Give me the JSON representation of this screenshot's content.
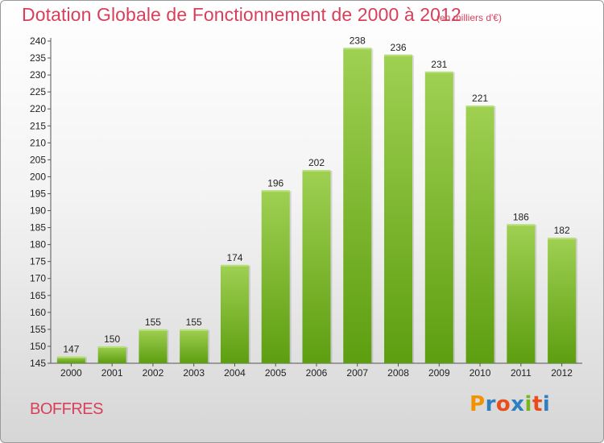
{
  "header": {
    "title": "Dotation Globale de Fonctionnement de 2000 à 2012",
    "subtitle": "(en milliers d'€)"
  },
  "commune": "BOFFRES",
  "logo": {
    "letters": [
      "P",
      "r",
      "o",
      "x",
      "i",
      "t",
      "i"
    ],
    "colors": [
      "#f39200",
      "#2f7fc1",
      "#e84e1b",
      "#2f7fc1",
      "#7ab51d",
      "#e84e1b",
      "#2f7fc1"
    ]
  },
  "colors": {
    "accent": "#d83f5a",
    "bar_top": "#9fd052",
    "bar_bottom": "#5d9e10"
  },
  "chart_data": {
    "type": "bar",
    "categories": [
      "2000",
      "2001",
      "2002",
      "2003",
      "2004",
      "2005",
      "2006",
      "2007",
      "2008",
      "2009",
      "2010",
      "2011",
      "2012"
    ],
    "values": [
      147,
      150,
      155,
      155,
      174,
      196,
      202,
      238,
      236,
      231,
      221,
      186,
      182
    ],
    "ylim": [
      145,
      240
    ],
    "yticks": [
      145,
      150,
      155,
      160,
      165,
      170,
      175,
      180,
      185,
      190,
      195,
      200,
      205,
      210,
      215,
      220,
      225,
      230,
      235,
      240
    ],
    "grid": false
  }
}
